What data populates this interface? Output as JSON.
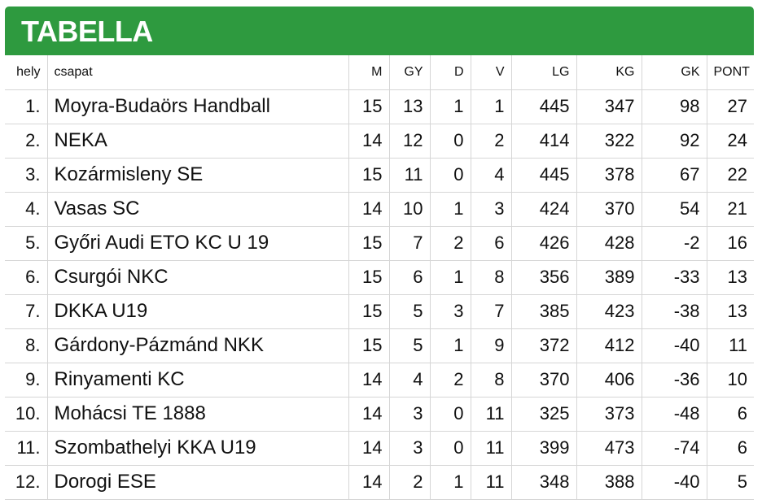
{
  "header": {
    "title": "TABELLA"
  },
  "table": {
    "columns": {
      "pos": "hely",
      "team": "csapat",
      "played": "M",
      "wins": "GY",
      "draws": "D",
      "losses": "V",
      "goals_for": "LG",
      "goals_against": "KG",
      "goal_diff": "GK",
      "points": "PONT"
    },
    "rows": [
      {
        "pos": "1.",
        "team": "Moyra-Budaörs Handball",
        "played": "15",
        "wins": "13",
        "draws": "1",
        "losses": "1",
        "goals_for": "445",
        "goals_against": "347",
        "goal_diff": "98",
        "points": "27"
      },
      {
        "pos": "2.",
        "team": "NEKA",
        "played": "14",
        "wins": "12",
        "draws": "0",
        "losses": "2",
        "goals_for": "414",
        "goals_against": "322",
        "goal_diff": "92",
        "points": "24"
      },
      {
        "pos": "3.",
        "team": "Kozármisleny SE",
        "played": "15",
        "wins": "11",
        "draws": "0",
        "losses": "4",
        "goals_for": "445",
        "goals_against": "378",
        "goal_diff": "67",
        "points": "22"
      },
      {
        "pos": "4.",
        "team": "Vasas SC",
        "played": "14",
        "wins": "10",
        "draws": "1",
        "losses": "3",
        "goals_for": "424",
        "goals_against": "370",
        "goal_diff": "54",
        "points": "21"
      },
      {
        "pos": "5.",
        "team": "Győri Audi ETO KC U 19",
        "played": "15",
        "wins": "7",
        "draws": "2",
        "losses": "6",
        "goals_for": "426",
        "goals_against": "428",
        "goal_diff": "-2",
        "points": "16"
      },
      {
        "pos": "6.",
        "team": "Csurgói NKC",
        "played": "15",
        "wins": "6",
        "draws": "1",
        "losses": "8",
        "goals_for": "356",
        "goals_against": "389",
        "goal_diff": "-33",
        "points": "13"
      },
      {
        "pos": "7.",
        "team": "DKKA U19",
        "played": "15",
        "wins": "5",
        "draws": "3",
        "losses": "7",
        "goals_for": "385",
        "goals_against": "423",
        "goal_diff": "-38",
        "points": "13"
      },
      {
        "pos": "8.",
        "team": "Gárdony-Pázmánd NKK",
        "played": "15",
        "wins": "5",
        "draws": "1",
        "losses": "9",
        "goals_for": "372",
        "goals_against": "412",
        "goal_diff": "-40",
        "points": "11"
      },
      {
        "pos": "9.",
        "team": "Rinyamenti KC",
        "played": "14",
        "wins": "4",
        "draws": "2",
        "losses": "8",
        "goals_for": "370",
        "goals_against": "406",
        "goal_diff": "-36",
        "points": "10"
      },
      {
        "pos": "10.",
        "team": "Mohácsi TE 1888",
        "played": "14",
        "wins": "3",
        "draws": "0",
        "losses": "11",
        "goals_for": "325",
        "goals_against": "373",
        "goal_diff": "-48",
        "points": "6"
      },
      {
        "pos": "11.",
        "team": "Szombathelyi KKA U19",
        "played": "14",
        "wins": "3",
        "draws": "0",
        "losses": "11",
        "goals_for": "399",
        "goals_against": "473",
        "goal_diff": "-74",
        "points": "6"
      },
      {
        "pos": "12.",
        "team": "Dorogi ESE",
        "played": "14",
        "wins": "2",
        "draws": "1",
        "losses": "11",
        "goals_for": "348",
        "goals_against": "388",
        "goal_diff": "-40",
        "points": "5"
      }
    ]
  },
  "colors": {
    "header_bg": "#2e9a3f",
    "header_text": "#ffffff",
    "grid": "#d6d6d6"
  }
}
